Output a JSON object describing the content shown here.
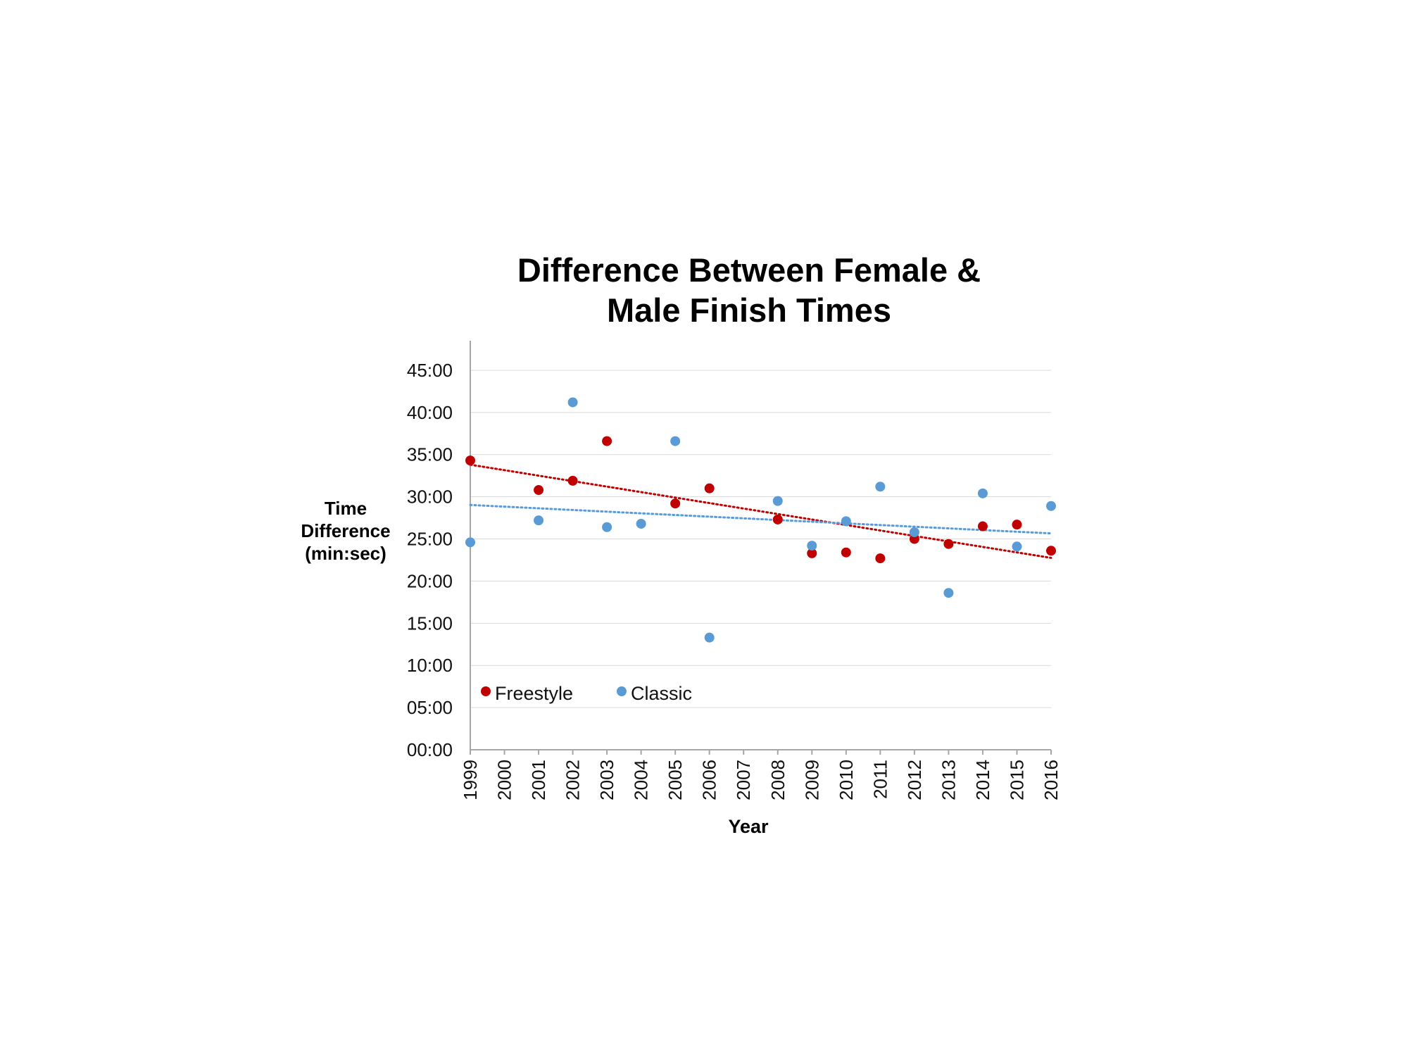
{
  "chart_data": {
    "type": "scatter",
    "title": [
      "Difference Between Female &",
      "Male Finish Times"
    ],
    "xlabel": "Year",
    "ylabel": [
      "Time",
      "Difference",
      "(min:sec)"
    ],
    "x_categories": [
      "1999",
      "2000",
      "2001",
      "2002",
      "2003",
      "2004",
      "2005",
      "2006",
      "2007",
      "2008",
      "2009",
      "2010",
      "2011",
      "2012",
      "2013",
      "2014",
      "2015",
      "2016"
    ],
    "y_ticks": [
      "00:00",
      "05:00",
      "10:00",
      "15:00",
      "20:00",
      "25:00",
      "30:00",
      "35:00",
      "40:00",
      "45:00"
    ],
    "y_unit": "minutes",
    "ylim": [
      0,
      47.5
    ],
    "grid": "horizontal",
    "legend_position": "bottom-left",
    "series": [
      {
        "name": "Freestyle",
        "color": "#c00000",
        "trendline": "linear-dotted",
        "points": [
          {
            "x": "1999",
            "y": 34.3
          },
          {
            "x": "2001",
            "y": 30.8
          },
          {
            "x": "2002",
            "y": 31.9
          },
          {
            "x": "2003",
            "y": 36.6
          },
          {
            "x": "2005",
            "y": 29.2
          },
          {
            "x": "2006",
            "y": 31.0
          },
          {
            "x": "2008",
            "y": 27.3
          },
          {
            "x": "2009",
            "y": 23.3
          },
          {
            "x": "2010",
            "y": 23.4
          },
          {
            "x": "2011",
            "y": 22.7
          },
          {
            "x": "2012",
            "y": 25.0
          },
          {
            "x": "2013",
            "y": 24.4
          },
          {
            "x": "2014",
            "y": 26.5
          },
          {
            "x": "2015",
            "y": 26.7
          },
          {
            "x": "2016",
            "y": 23.6
          }
        ]
      },
      {
        "name": "Classic",
        "color": "#5b9bd5",
        "trendline": "linear-dotted",
        "points": [
          {
            "x": "1999",
            "y": 24.6
          },
          {
            "x": "2001",
            "y": 27.2
          },
          {
            "x": "2002",
            "y": 41.2
          },
          {
            "x": "2003",
            "y": 26.4
          },
          {
            "x": "2004",
            "y": 26.8
          },
          {
            "x": "2005",
            "y": 36.6
          },
          {
            "x": "2006",
            "y": 13.3
          },
          {
            "x": "2008",
            "y": 29.5
          },
          {
            "x": "2009",
            "y": 24.2
          },
          {
            "x": "2010",
            "y": 27.1
          },
          {
            "x": "2011",
            "y": 31.2
          },
          {
            "x": "2012",
            "y": 25.8
          },
          {
            "x": "2013",
            "y": 18.6
          },
          {
            "x": "2014",
            "y": 30.4
          },
          {
            "x": "2015",
            "y": 24.1
          },
          {
            "x": "2016",
            "y": 28.9
          }
        ]
      }
    ]
  }
}
